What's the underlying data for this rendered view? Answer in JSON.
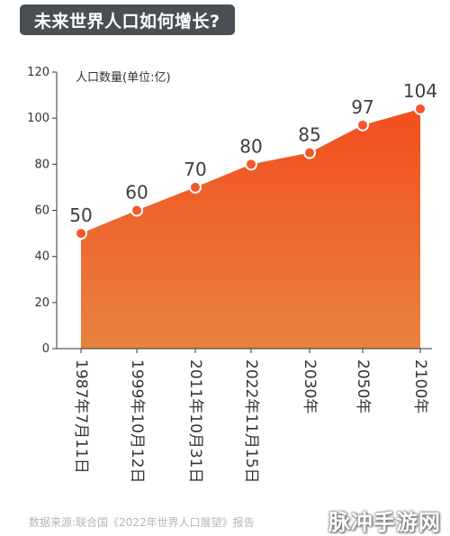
{
  "header": {
    "title": "未来世界人口如何增长?"
  },
  "chart_data": {
    "type": "area",
    "title": "未来世界人口如何增长?",
    "ylabel": "人口数量(单位:亿)",
    "xlabel": "",
    "categories": [
      "1987年7月11日",
      "1999年10月12日",
      "2011年10月31日",
      "2022年11月15日",
      "2030年",
      "2050年",
      "2100年"
    ],
    "values": [
      50,
      60,
      70,
      80,
      85,
      97,
      104
    ],
    "ylim": [
      0,
      120
    ],
    "yticks": [
      0,
      20,
      40,
      60,
      80,
      100,
      120
    ],
    "grid": false,
    "legend": "none",
    "colors": {
      "fill_top": "#f24e1e",
      "fill_bottom": "#e8823f",
      "marker": "#f05a2a",
      "axis": "#333333",
      "title_bg": "#4a4f55"
    }
  },
  "footer": {
    "source": "数据来源:联合国《2022年世界人口展望》报告",
    "watermark": "脉冲手游网"
  }
}
